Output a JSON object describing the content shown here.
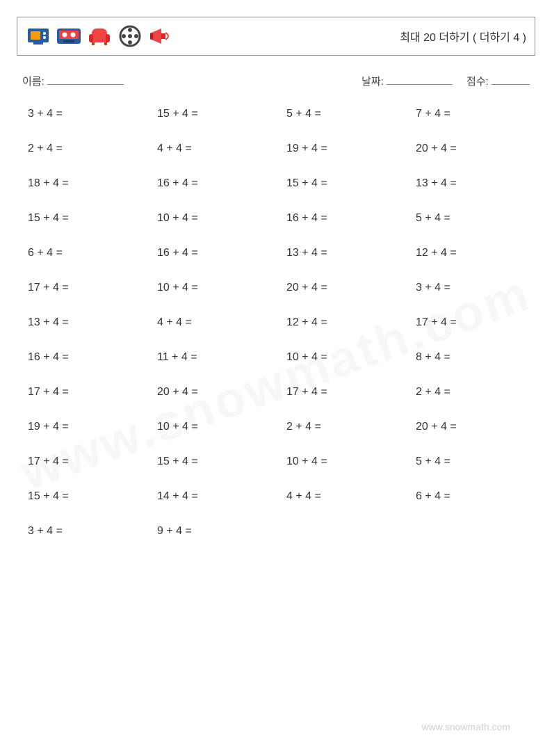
{
  "header": {
    "title": "최대 20 더하기 ( 더하기 4 )",
    "icons": [
      {
        "name": "tv-icon",
        "frame": "#2c5aa0",
        "body": "#f59e0b"
      },
      {
        "name": "cassette-icon",
        "frame": "#2c5aa0",
        "body": "#ef4444"
      },
      {
        "name": "sofa-icon",
        "frame": "#ef4444",
        "body": "#ef4444"
      },
      {
        "name": "film-reel-icon",
        "frame": "#444444",
        "body": "#444444"
      },
      {
        "name": "megaphone-icon",
        "frame": "#ef4444",
        "body": "#ef4444"
      }
    ]
  },
  "info": {
    "name_label": "이름:",
    "date_label": "날짜:",
    "score_label": "점수:",
    "name_underline_width": 110,
    "date_underline_width": 95,
    "score_underline_width": 55
  },
  "problem_style": {
    "font_size": 16,
    "color": "#333333",
    "columns": 4,
    "row_gap": 32
  },
  "problems": [
    "3 + 4 =",
    "15 + 4 =",
    "5 + 4 =",
    "7 + 4 =",
    "2 + 4 =",
    "4 + 4 =",
    "19 + 4 =",
    "20 + 4 =",
    "18 + 4 =",
    "16 + 4 =",
    "15 + 4 =",
    "13 + 4 =",
    "15 + 4 =",
    "10 + 4 =",
    "16 + 4 =",
    "5 + 4 =",
    "6 + 4 =",
    "16 + 4 =",
    "13 + 4 =",
    "12 + 4 =",
    "17 + 4 =",
    "10 + 4 =",
    "20 + 4 =",
    "3 + 4 =",
    "13 + 4 =",
    "4 + 4 =",
    "12 + 4 =",
    "17 + 4 =",
    "16 + 4 =",
    "11 + 4 =",
    "10 + 4 =",
    "8 + 4 =",
    "17 + 4 =",
    "20 + 4 =",
    "17 + 4 =",
    "2 + 4 =",
    "19 + 4 =",
    "10 + 4 =",
    "2 + 4 =",
    "20 + 4 =",
    "17 + 4 =",
    "15 + 4 =",
    "10 + 4 =",
    "5 + 4 =",
    "15 + 4 =",
    "14 + 4 =",
    "4 + 4 =",
    "6 + 4 =",
    "3 + 4 =",
    "9 + 4 ="
  ],
  "watermark": "www.snowmath.com",
  "footer": "www.snowmath.com",
  "colors": {
    "background": "#ffffff",
    "border": "#888888",
    "text": "#333333",
    "watermark": "rgba(120,120,120,0.06)"
  }
}
